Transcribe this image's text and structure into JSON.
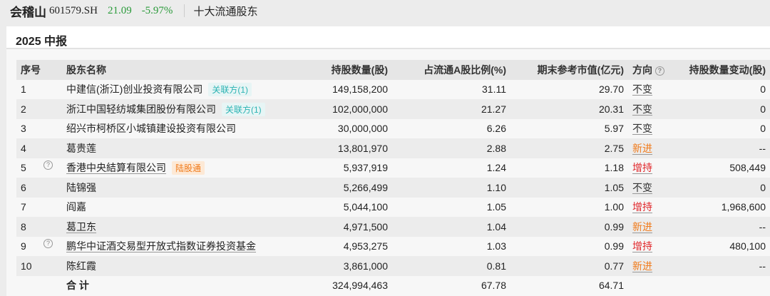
{
  "header": {
    "stock_name": "会稽山",
    "code": "601579.SH",
    "price": "21.09",
    "change": "-5.97%",
    "section": "十大流通股东"
  },
  "report": {
    "title": "2025 中报"
  },
  "table": {
    "columns": [
      "序号",
      "股东名称",
      "持股数量(股)",
      "占流通A股比例(%)",
      "期末参考市值(亿元)",
      "方向",
      "持股数量变动(股)"
    ],
    "rows": [
      {
        "no": "1",
        "name": "中建信(浙江)创业投资有限公司",
        "badge": "关联方(1)",
        "badge_type": "rel",
        "help": false,
        "shares": "149,158,200",
        "ratio": "31.11",
        "value": "29.70",
        "dir": "不变",
        "dir_type": "same",
        "chg": "0"
      },
      {
        "no": "2",
        "name": "浙江中国轻纺城集团股份有限公司",
        "badge": "关联方(1)",
        "badge_type": "rel",
        "help": false,
        "shares": "102,000,000",
        "ratio": "21.27",
        "value": "20.31",
        "dir": "不变",
        "dir_type": "same",
        "chg": "0"
      },
      {
        "no": "3",
        "name": "绍兴市柯桥区小城镇建设投资有限公司",
        "badge": "",
        "badge_type": "",
        "help": false,
        "shares": "30,000,000",
        "ratio": "6.26",
        "value": "5.97",
        "dir": "不变",
        "dir_type": "same",
        "chg": "0"
      },
      {
        "no": "4",
        "name": "葛贵莲",
        "badge": "",
        "badge_type": "",
        "help": false,
        "shares": "13,801,970",
        "ratio": "2.88",
        "value": "2.75",
        "dir": "新进",
        "dir_type": "new",
        "chg": "--"
      },
      {
        "no": "5",
        "name": "香港中央結算有限公司",
        "badge": "陆股通",
        "badge_type": "hk",
        "help": true,
        "shares": "5,937,919",
        "ratio": "1.24",
        "value": "1.18",
        "dir": "增持",
        "dir_type": "up",
        "chg": "508,449"
      },
      {
        "no": "6",
        "name": "陆锦强",
        "badge": "",
        "badge_type": "",
        "help": false,
        "shares": "5,266,499",
        "ratio": "1.10",
        "value": "1.05",
        "dir": "不变",
        "dir_type": "same",
        "chg": "0"
      },
      {
        "no": "7",
        "name": "阎嘉",
        "badge": "",
        "badge_type": "",
        "help": false,
        "shares": "5,044,100",
        "ratio": "1.05",
        "value": "1.00",
        "dir": "增持",
        "dir_type": "up",
        "chg": "1,968,600"
      },
      {
        "no": "8",
        "name": "葛卫东",
        "badge": "",
        "badge_type": "",
        "help": false,
        "shares": "4,971,500",
        "ratio": "1.04",
        "value": "0.99",
        "dir": "新进",
        "dir_type": "new",
        "chg": "--"
      },
      {
        "no": "9",
        "name": "鹏华中证酒交易型开放式指数证券投资基金",
        "badge": "",
        "badge_type": "",
        "help": true,
        "shares": "4,953,275",
        "ratio": "1.03",
        "value": "0.99",
        "dir": "增持",
        "dir_type": "up",
        "chg": "480,100"
      },
      {
        "no": "10",
        "name": "陈红霞",
        "badge": "",
        "badge_type": "",
        "help": false,
        "shares": "3,861,000",
        "ratio": "0.81",
        "value": "0.77",
        "dir": "新进",
        "dir_type": "new",
        "chg": "--"
      }
    ],
    "total": {
      "label": "合 计",
      "shares": "324,994,463",
      "ratio": "67.78",
      "value": "64.71"
    }
  },
  "colors": {
    "up": "#e0262a",
    "new": "#f07a1a",
    "price": "#2a9a3a",
    "related": "#2bb3b3"
  }
}
